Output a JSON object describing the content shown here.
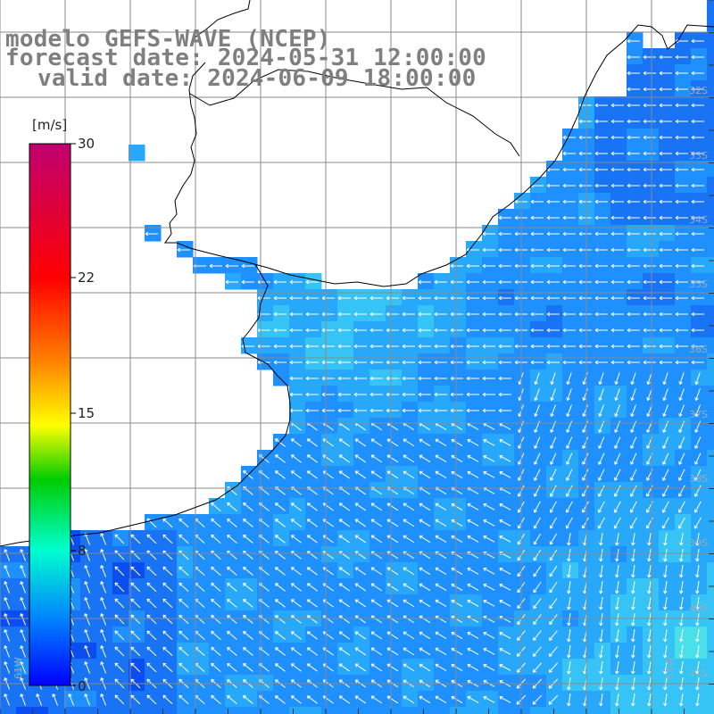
{
  "header": {
    "model": "modelo GEFS-WAVE (NCEP)",
    "forecast": "forecast date: 2024-05-31 12:00:00",
    "valid": "valid date: 2024-06-09 18:00:00"
  },
  "colorbar": {
    "unit": "[m/s]",
    "ticks": [
      "30",
      "22",
      "15",
      "8",
      "0"
    ],
    "gradient_stops": [
      "#c00070",
      "#ff0000",
      "#ff8000",
      "#ffff00",
      "#00cc00",
      "#00ffd0",
      "#0080ff",
      "#0000ff"
    ]
  },
  "graticule": {
    "lat_labels": [
      "32S",
      "33S",
      "34S",
      "35S",
      "36S",
      "37S",
      "38S",
      "39S",
      "40S",
      "41S"
    ],
    "lon_labels": [
      "61W",
      "51W"
    ]
  },
  "map": {
    "ocean_colors": [
      "#0a4df0",
      "#1873f5",
      "#1e90ff",
      "#28a8fa",
      "#35c4f5",
      "#4ae0ea"
    ],
    "arrow_color": "#ffffff",
    "land_color": "#ffffff",
    "coast_color": "#000000",
    "grid_color": "#8a8a8a"
  }
}
